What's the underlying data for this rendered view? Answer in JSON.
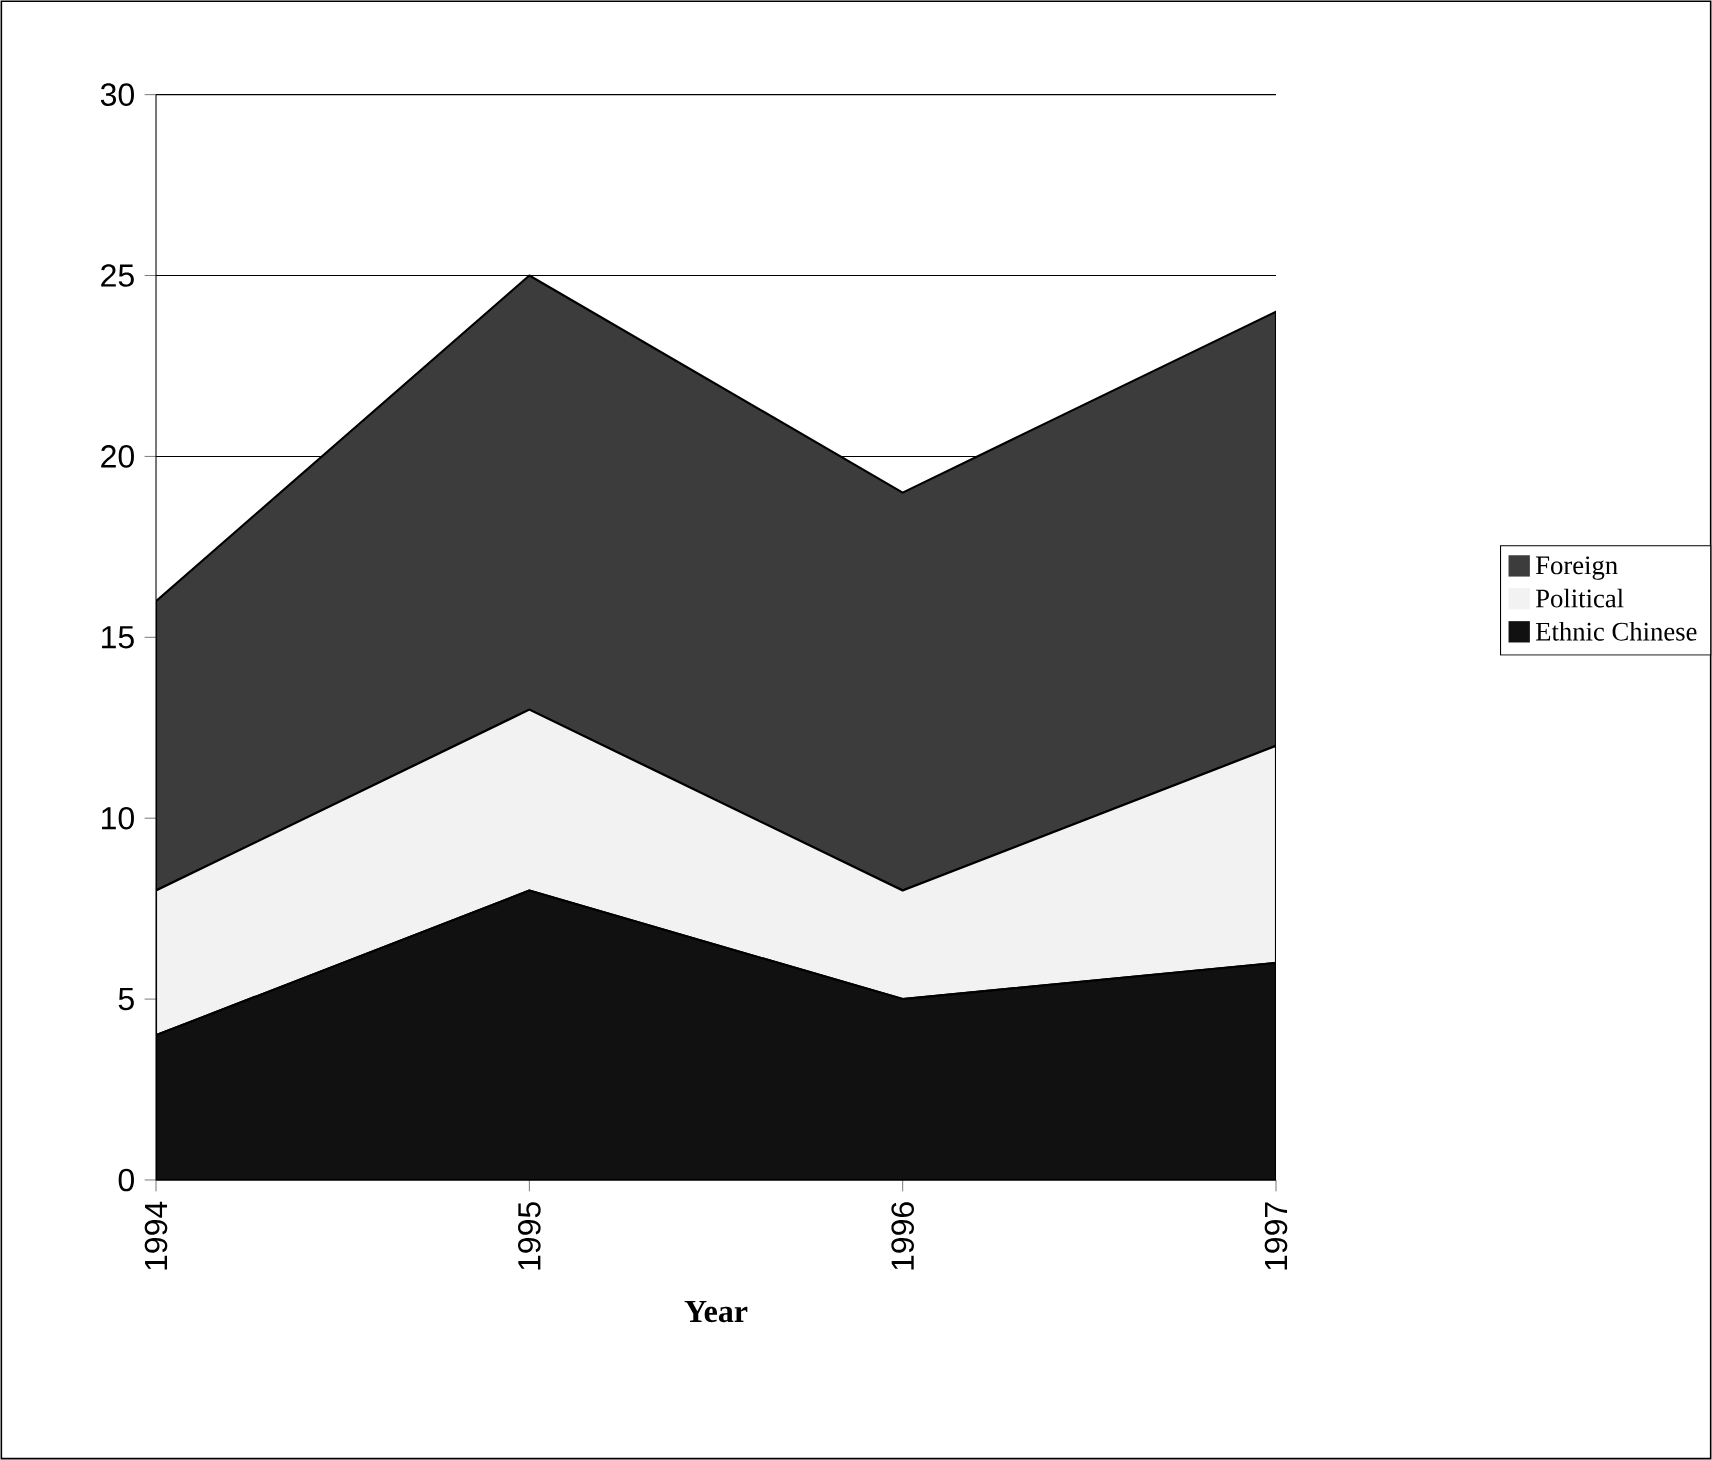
{
  "chart_data": {
    "type": "area",
    "stacked": true,
    "xlabel": "Year",
    "categories": [
      "1994",
      "1995",
      "1996",
      "1997"
    ],
    "series": [
      {
        "name": "Ethnic Chinese",
        "color": "#111111",
        "values": [
          4,
          8,
          5,
          6
        ]
      },
      {
        "name": "Political",
        "color": "#f2f2f2",
        "values": [
          4,
          5,
          3,
          6
        ]
      },
      {
        "name": "Foreign",
        "color": "#3c3c3c",
        "values": [
          8,
          12,
          11,
          12
        ]
      }
    ],
    "ylim": [
      0,
      30
    ],
    "yticks": [
      0,
      5,
      10,
      15,
      20,
      25,
      30
    ],
    "grid": "y",
    "legend": "right"
  }
}
